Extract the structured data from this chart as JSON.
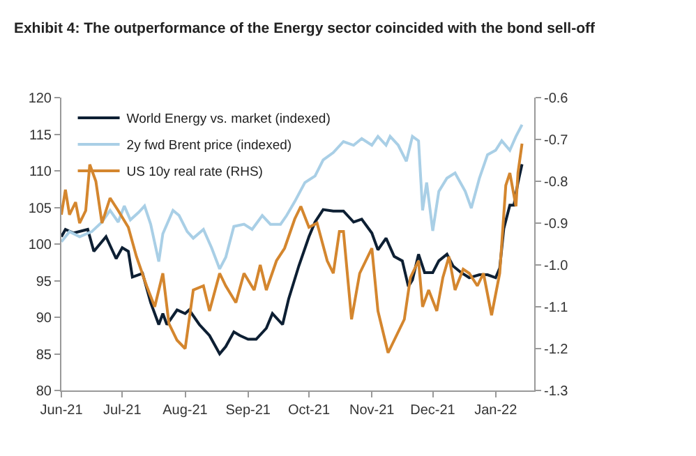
{
  "chart_data": {
    "type": "line",
    "title": "Exhibit 4: The outperformance of the Energy sector coincided with the bond sell-off",
    "series": [
      {
        "name": "World Energy vs. market (indexed)",
        "color": "#0d1f33",
        "x": [
          "2021-06-01",
          "2021-06-03",
          "2021-06-07",
          "2021-06-14",
          "2021-06-17",
          "2021-06-23",
          "2021-06-28",
          "2021-07-01",
          "2021-07-04",
          "2021-07-06",
          "2021-07-11",
          "2021-07-15",
          "2021-07-19",
          "2021-07-21",
          "2021-07-23",
          "2021-07-28",
          "2021-08-01",
          "2021-08-03",
          "2021-08-08",
          "2021-08-13",
          "2021-08-18",
          "2021-08-21",
          "2021-08-25",
          "2021-08-28",
          "2021-09-01",
          "2021-09-05",
          "2021-09-10",
          "2021-09-13",
          "2021-09-18",
          "2021-09-21",
          "2021-09-26",
          "2021-10-01",
          "2021-10-04",
          "2021-10-08",
          "2021-10-13",
          "2021-10-18",
          "2021-10-23",
          "2021-10-27",
          "2021-11-01",
          "2021-11-04",
          "2021-11-08",
          "2021-11-12",
          "2021-11-16",
          "2021-11-19",
          "2021-11-21",
          "2021-11-24",
          "2021-11-27",
          "2021-12-01",
          "2021-12-04",
          "2021-12-08",
          "2021-12-11",
          "2021-12-15",
          "2021-12-19",
          "2021-12-24",
          "2021-12-28",
          "2022-01-01",
          "2022-01-03",
          "2022-01-05",
          "2022-01-08",
          "2022-01-10",
          "2022-01-12",
          "2022-01-14"
        ],
        "values": [
          101,
          102,
          101.5,
          102,
          99,
          101,
          98,
          99.5,
          99,
          95.5,
          96,
          92,
          89,
          90.5,
          89,
          91,
          90.5,
          91,
          89,
          87.5,
          85,
          86,
          88,
          87.5,
          87,
          87,
          88.5,
          90.5,
          89,
          92.5,
          97,
          101,
          103,
          104.7,
          104.5,
          104.5,
          103,
          103.4,
          101.5,
          99.2,
          100.8,
          98.3,
          97.7,
          94.2,
          95.1,
          98.6,
          96.1,
          96.1,
          97.7,
          98.6,
          97,
          96.1,
          95.4,
          95.8,
          95.8,
          95.4,
          96.7,
          102.1,
          105.3,
          105.3,
          108.4,
          110.9
        ]
      },
      {
        "name": "2y fwd Brent price (indexed)",
        "color": "#a9cfe6",
        "x": [
          "2021-06-01",
          "2021-06-05",
          "2021-06-10",
          "2021-06-16",
          "2021-06-21",
          "2021-06-25",
          "2021-06-29",
          "2021-07-02",
          "2021-07-05",
          "2021-07-09",
          "2021-07-12",
          "2021-07-15",
          "2021-07-19",
          "2021-07-21",
          "2021-07-26",
          "2021-07-29",
          "2021-08-02",
          "2021-08-05",
          "2021-08-10",
          "2021-08-14",
          "2021-08-18",
          "2021-08-21",
          "2021-08-25",
          "2021-08-30",
          "2021-09-03",
          "2021-09-08",
          "2021-09-12",
          "2021-09-17",
          "2021-09-20",
          "2021-09-24",
          "2021-09-29",
          "2021-10-04",
          "2021-10-08",
          "2021-10-13",
          "2021-10-18",
          "2021-10-23",
          "2021-10-27",
          "2021-11-01",
          "2021-11-04",
          "2021-11-08",
          "2021-11-10",
          "2021-11-14",
          "2021-11-18",
          "2021-11-21",
          "2021-11-24",
          "2021-11-26",
          "2021-11-28",
          "2021-12-01",
          "2021-12-04",
          "2021-12-08",
          "2021-12-12",
          "2021-12-17",
          "2021-12-20",
          "2021-12-24",
          "2021-12-28",
          "2022-01-01",
          "2022-01-04",
          "2022-01-08",
          "2022-01-11",
          "2022-01-14"
        ],
        "values": [
          100.3,
          101.7,
          101,
          101.7,
          103,
          104.6,
          103,
          105.2,
          103.3,
          104.3,
          105.2,
          102.7,
          97.6,
          101.4,
          104.6,
          103.9,
          101.7,
          100.8,
          102,
          99.5,
          96.6,
          98.2,
          102.4,
          102.7,
          102,
          103.9,
          102.7,
          102.7,
          103.9,
          105.8,
          108.4,
          109.3,
          111.5,
          112.5,
          114,
          113.5,
          114.4,
          113.5,
          114.7,
          113.5,
          114.7,
          113.5,
          111.3,
          114.7,
          114.1,
          104.6,
          108.4,
          101.8,
          107.2,
          109,
          109.7,
          107.2,
          104.9,
          109,
          112.2,
          112.8,
          114.1,
          112.8,
          114.7,
          116.3
        ]
      },
      {
        "name": "US 10y real rate (RHS)",
        "color": "#d4862e",
        "axis": "y2",
        "x": [
          "2021-06-01",
          "2021-06-03",
          "2021-06-05",
          "2021-06-08",
          "2021-06-10",
          "2021-06-13",
          "2021-06-15",
          "2021-06-18",
          "2021-06-21",
          "2021-06-25",
          "2021-06-29",
          "2021-07-04",
          "2021-07-08",
          "2021-07-13",
          "2021-07-17",
          "2021-07-21",
          "2021-07-24",
          "2021-07-28",
          "2021-08-01",
          "2021-08-05",
          "2021-08-10",
          "2021-08-13",
          "2021-08-18",
          "2021-08-21",
          "2021-08-26",
          "2021-08-30",
          "2021-09-04",
          "2021-09-07",
          "2021-09-10",
          "2021-09-15",
          "2021-09-19",
          "2021-09-24",
          "2021-09-27",
          "2021-10-01",
          "2021-10-05",
          "2021-10-10",
          "2021-10-13",
          "2021-10-16",
          "2021-10-18",
          "2021-10-22",
          "2021-10-26",
          "2021-11-01",
          "2021-11-04",
          "2021-11-09",
          "2021-11-12",
          "2021-11-17",
          "2021-11-20",
          "2021-11-24",
          "2021-11-26",
          "2021-11-29",
          "2021-12-03",
          "2021-12-06",
          "2021-12-09",
          "2021-12-12",
          "2021-12-16",
          "2021-12-19",
          "2021-12-23",
          "2021-12-26",
          "2021-12-30",
          "2022-01-03",
          "2022-01-06",
          "2022-01-08",
          "2022-01-11",
          "2022-01-12",
          "2022-01-14"
        ],
        "values": [
          -0.88,
          -0.82,
          -0.88,
          -0.85,
          -0.9,
          -0.87,
          -0.76,
          -0.8,
          -0.9,
          -0.84,
          -0.87,
          -0.91,
          -0.98,
          -1.05,
          -1.1,
          -1.02,
          -1.14,
          -1.18,
          -1.2,
          -1.06,
          -1.05,
          -1.11,
          -1.02,
          -1.05,
          -1.09,
          -1.02,
          -1.06,
          -1.0,
          -1.06,
          -0.99,
          -0.96,
          -0.89,
          -0.86,
          -0.91,
          -0.9,
          -0.99,
          -1.02,
          -0.92,
          -0.92,
          -1.13,
          -1.02,
          -0.96,
          -1.11,
          -1.21,
          -1.18,
          -1.13,
          -1.03,
          -0.99,
          -1.1,
          -1.06,
          -1.11,
          -1.03,
          -0.98,
          -1.06,
          -1.01,
          -1.02,
          -1.05,
          -1.02,
          -1.12,
          -1.02,
          -0.81,
          -0.78,
          -0.86,
          -0.78,
          -0.71
        ]
      }
    ],
    "xlim": [
      "2021-06-01",
      "2022-01-20"
    ],
    "xticks": [
      {
        "value": "2021-06-01",
        "label": "Jun-21"
      },
      {
        "value": "2021-07-01",
        "label": "Jul-21"
      },
      {
        "value": "2021-08-01",
        "label": "Aug-21"
      },
      {
        "value": "2021-09-01",
        "label": "Sep-21"
      },
      {
        "value": "2021-10-01",
        "label": "Oct-21"
      },
      {
        "value": "2021-11-01",
        "label": "Nov-21"
      },
      {
        "value": "2021-12-01",
        "label": "Dec-21"
      },
      {
        "value": "2022-01-01",
        "label": "Jan-22"
      }
    ],
    "ylim": [
      80,
      120
    ],
    "yticks": [
      80,
      85,
      90,
      95,
      100,
      105,
      110,
      115,
      120
    ],
    "y2lim": [
      -1.3,
      -0.6
    ],
    "y2ticks": [
      {
        "value": -1.3,
        "label": "-1.3"
      },
      {
        "value": -1.2,
        "label": "-1.2"
      },
      {
        "value": -1.1,
        "label": "-1.1"
      },
      {
        "value": -1.0,
        "label": "-1.0"
      },
      {
        "value": -0.9,
        "label": "-0.9"
      },
      {
        "value": -0.8,
        "label": "-0.8"
      },
      {
        "value": -0.7,
        "label": "-0.7"
      },
      {
        "value": -0.6,
        "label": "-0.6"
      }
    ],
    "legend": "top left",
    "marker": "none",
    "line_style": "solid"
  }
}
